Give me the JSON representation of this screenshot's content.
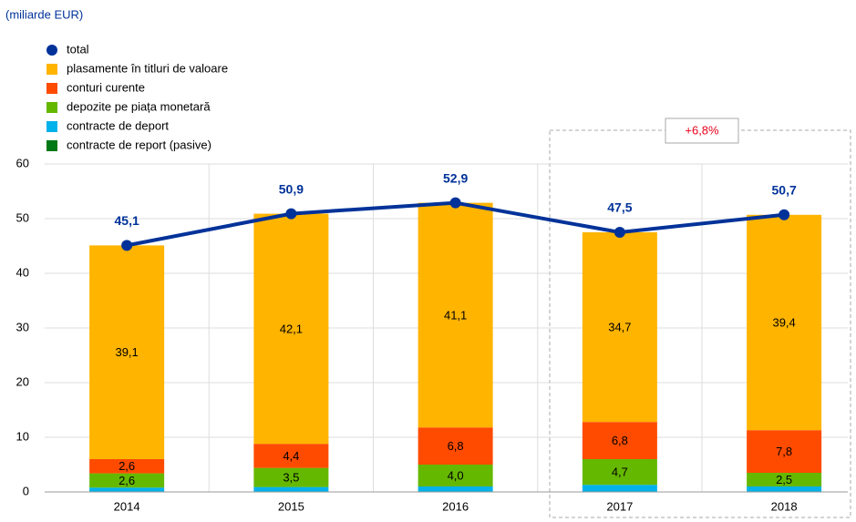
{
  "chart_data": {
    "type": "bar",
    "stacked": true,
    "y_label": "(miliarde EUR)",
    "categories": [
      "2014",
      "2015",
      "2016",
      "2017",
      "2018"
    ],
    "series": [
      {
        "name": "total",
        "type": "line",
        "color": "#003299",
        "values": [
          45.1,
          50.9,
          52.9,
          47.5,
          50.7
        ],
        "value_labels": [
          "45,1",
          "50,9",
          "52,9",
          "47,5",
          "50,7"
        ]
      },
      {
        "name": "plasamente în titluri de valoare",
        "color": "#ffb400",
        "values": [
          39.1,
          42.1,
          41.1,
          34.7,
          39.4
        ],
        "value_labels": [
          "39,1",
          "42,1",
          "41,1",
          "34,7",
          "39,4"
        ]
      },
      {
        "name": "conturi curente",
        "color": "#ff4b00",
        "values": [
          2.6,
          4.4,
          6.8,
          6.8,
          7.8
        ],
        "value_labels": [
          "2,6",
          "4,4",
          "6,8",
          "6,8",
          "7,8"
        ]
      },
      {
        "name": "depozite pe piața monetară",
        "color": "#65b800",
        "values": [
          2.6,
          3.5,
          4.0,
          4.7,
          2.5
        ],
        "value_labels": [
          "2,6",
          "3,5",
          "4,0",
          "4,7",
          "2,5"
        ]
      },
      {
        "name": "contracte de deport",
        "color": "#00b1ea",
        "values": [
          0.8,
          0.9,
          1.0,
          1.3,
          1.0
        ]
      },
      {
        "name": "contracte de report (pasive)",
        "color": "#007816",
        "values": [
          0,
          0,
          0,
          0,
          0
        ]
      }
    ],
    "ylim": [
      0,
      60
    ],
    "yticks": [
      0,
      10,
      20,
      30,
      40,
      50,
      60
    ],
    "grid": true,
    "annotations": [
      {
        "text": "+6,8%"
      }
    ]
  }
}
